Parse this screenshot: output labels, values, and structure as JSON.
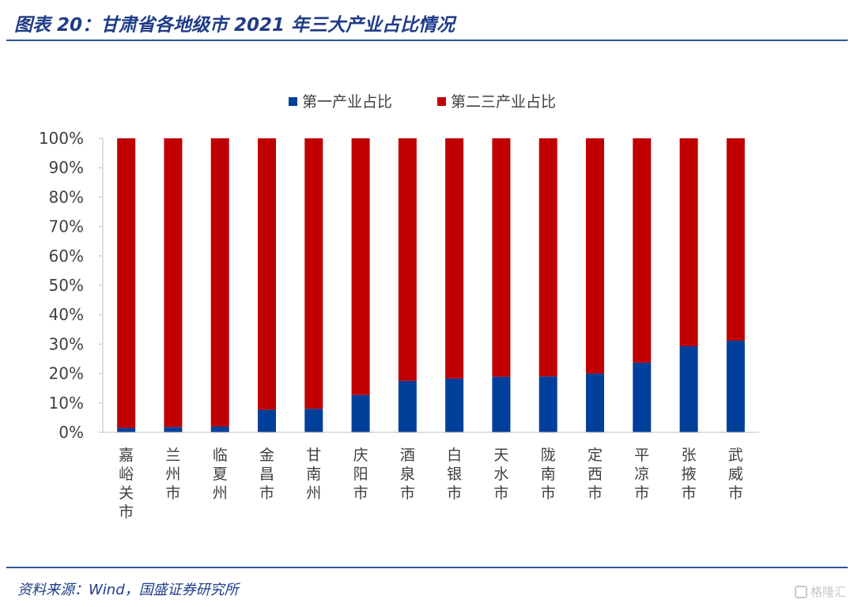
{
  "header": {
    "title": "图表 20：甘肃省各地级市 2021 年三大产业占比情况"
  },
  "footer": {
    "source": "资料来源：Wind，国盛证券研究所",
    "watermark": "格隆汇"
  },
  "colors": {
    "primary": "#003f9a",
    "secondary_tertiary": "#c00000",
    "accent": "#1f3c88"
  },
  "chart_data": {
    "type": "bar",
    "stacked": true,
    "categories": [
      "嘉峪关市",
      "兰州市",
      "临夏州",
      "金昌市",
      "甘南州",
      "庆阳市",
      "酒泉市",
      "白银市",
      "天水市",
      "陇南市",
      "定西市",
      "平凉市",
      "张掖市",
      "武威市"
    ],
    "series": [
      {
        "name": "第一产业占比",
        "color": "#003f9a",
        "values": [
          1.5,
          1.8,
          2.0,
          7.7,
          8.0,
          12.7,
          17.5,
          18.3,
          18.9,
          19.0,
          20.0,
          23.7,
          29.3,
          31.2
        ]
      },
      {
        "name": "第二三产业占比",
        "color": "#c00000",
        "values": [
          98.5,
          98.2,
          98.0,
          92.3,
          92.0,
          87.3,
          82.5,
          81.7,
          81.1,
          81.0,
          80.0,
          76.3,
          70.7,
          68.8
        ]
      }
    ],
    "y_ticks": [
      "0%",
      "10%",
      "20%",
      "30%",
      "40%",
      "50%",
      "60%",
      "70%",
      "80%",
      "90%",
      "100%"
    ],
    "ylim": [
      0,
      100
    ],
    "grid": false,
    "legend_position": "top-center"
  }
}
